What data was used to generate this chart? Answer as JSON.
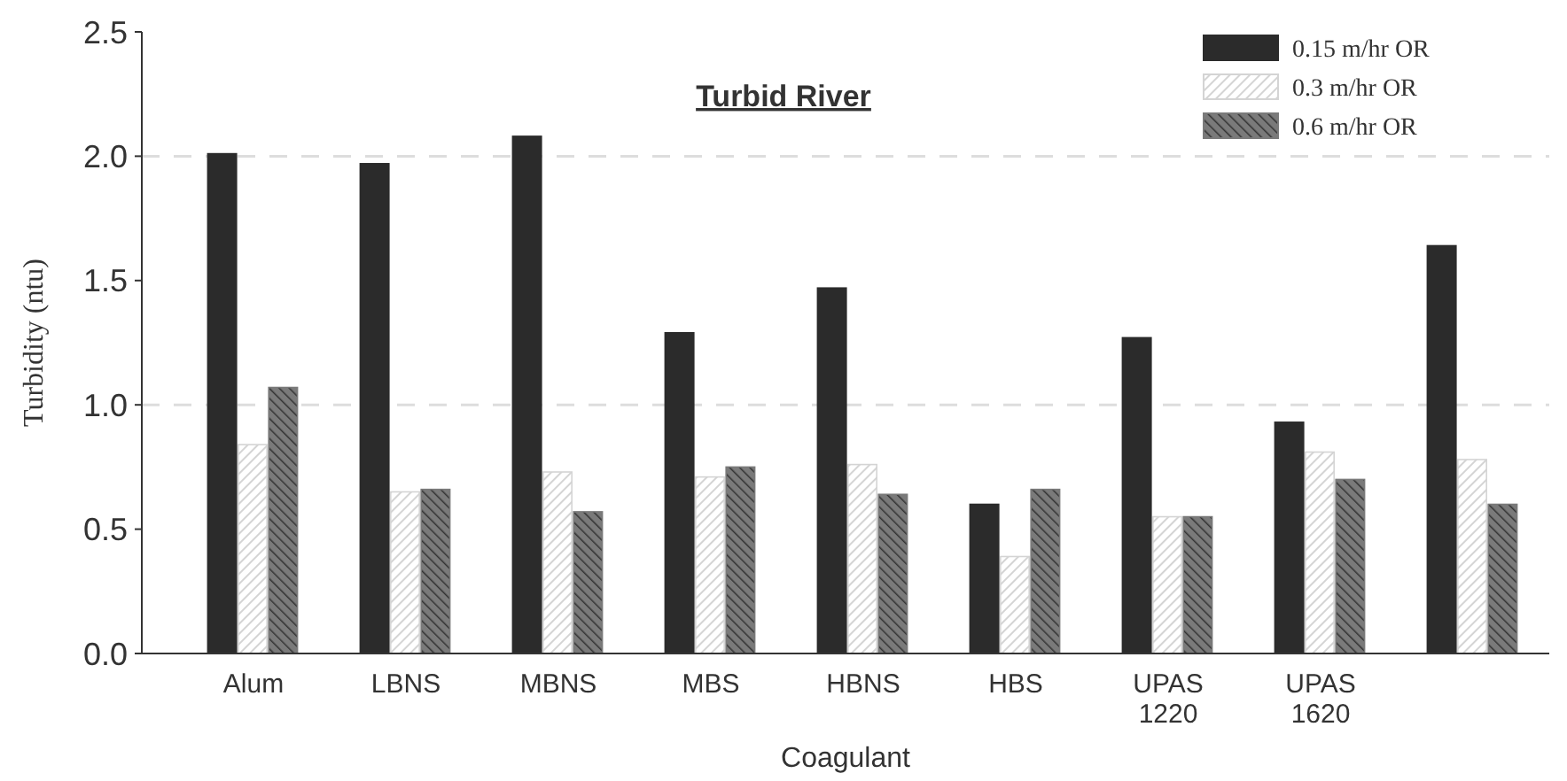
{
  "chart_data": {
    "type": "bar",
    "title": "Turbid River",
    "xlabel": "Coagulant",
    "ylabel": "Turbidity (ntu)",
    "categories": [
      "Alum",
      "LBNS",
      "MBNS",
      "MBS",
      "HBNS",
      "HBS",
      "UPAS 1220",
      "UPAS 1620",
      null
    ],
    "series": [
      {
        "name": "0.15 m/hr OR",
        "color": "#2b2b2b",
        "values": [
          2.01,
          1.97,
          2.08,
          1.29,
          1.47,
          0.6,
          1.27,
          0.93,
          1.64
        ]
      },
      {
        "name": "0.3 m/hr OR",
        "color": "#d4d4d4",
        "values": [
          0.84,
          0.65,
          0.73,
          0.71,
          0.76,
          0.39,
          0.55,
          0.81,
          0.78
        ]
      },
      {
        "name": "0.6 m/hr OR",
        "color": "#7a7a7a",
        "values": [
          1.07,
          0.66,
          0.57,
          0.75,
          0.64,
          0.66,
          0.55,
          0.7,
          0.6
        ]
      }
    ],
    "ylim": [
      0,
      2.5
    ],
    "yticks": [
      {
        "value": 0,
        "label": "0.0"
      },
      0.5,
      {
        "value": 1,
        "label": "1.0"
      },
      1.5,
      {
        "value": 2,
        "label": "2.0"
      },
      2.5
    ],
    "ref_lines": [
      {
        "axis": "y",
        "value": 1,
        "color": "#dddddd",
        "line_style": "dashed"
      },
      {
        "axis": "y",
        "value": 2,
        "color": "#dddddd",
        "line_style": "dashed"
      }
    ],
    "legend": "top right"
  }
}
